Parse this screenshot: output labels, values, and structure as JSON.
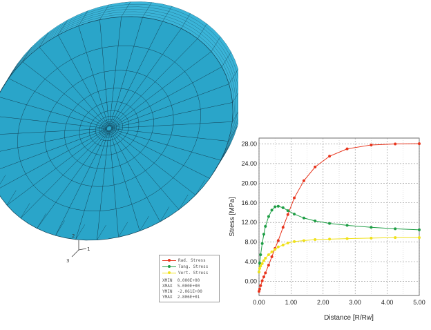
{
  "view": {
    "mesh_color": "#2aa5c9",
    "mesh_side_color": "#3ab4d8",
    "mesh_line_color": "#123e52",
    "triad_labels": [
      "2",
      "1",
      "3"
    ]
  },
  "legend": {
    "entries": [
      {
        "label": "Rad. Stress",
        "color": "#e8341c"
      },
      {
        "label": "Tang. Stress",
        "color": "#1e9e45"
      },
      {
        "label": "Vert. Stress",
        "color": "#f0e11a"
      }
    ],
    "stats": [
      {
        "key": "XMIN",
        "value": "0.000E+00"
      },
      {
        "key": "XMAX",
        "value": "5.000E+00"
      },
      {
        "key": "YMIN",
        "value": "-2.061E+00"
      },
      {
        "key": "YMAX",
        "value": "2.806E+01"
      }
    ]
  },
  "chart_data": {
    "type": "line",
    "xlabel": "Distance [R/Rw]",
    "ylabel": "Stress [MPa]",
    "xlim": [
      0,
      5
    ],
    "ylim": [
      -2.9,
      29.2
    ],
    "xticks": [
      "0.00",
      "1.00",
      "2.00",
      "3.00",
      "4.00",
      "5.00"
    ],
    "yticks": [
      "0.00",
      "4.00",
      "8.00",
      "12.00",
      "16.00",
      "20.00",
      "24.00",
      "28.00"
    ],
    "grid": true,
    "series": [
      {
        "name": "Rad. Stress",
        "color": "#e8341c",
        "x": [
          0,
          0.02,
          0.05,
          0.1,
          0.15,
          0.2,
          0.3,
          0.4,
          0.5,
          0.6,
          0.75,
          0.9,
          1.1,
          1.4,
          1.75,
          2.2,
          2.75,
          3.5,
          4.25,
          5.0
        ],
        "y": [
          -2.06,
          -1.6,
          -0.9,
          0.1,
          0.9,
          1.7,
          3.3,
          5.0,
          6.7,
          8.3,
          11.0,
          13.6,
          17.0,
          20.5,
          23.3,
          25.5,
          27.0,
          27.8,
          28.0,
          28.06
        ]
      },
      {
        "name": "Tang. Stress",
        "color": "#1e9e45",
        "x": [
          0,
          0.02,
          0.05,
          0.1,
          0.15,
          0.2,
          0.3,
          0.4,
          0.5,
          0.6,
          0.75,
          0.9,
          1.1,
          1.4,
          1.75,
          2.2,
          2.75,
          3.5,
          4.25,
          5.0
        ],
        "y": [
          1.9,
          3.7,
          5.4,
          7.7,
          9.6,
          11.2,
          13.2,
          14.5,
          15.2,
          15.3,
          15.0,
          14.4,
          13.7,
          12.9,
          12.3,
          11.8,
          11.4,
          11.0,
          10.7,
          10.5
        ]
      },
      {
        "name": "Vert. Stress",
        "color": "#f0e11a",
        "x": [
          0,
          0.02,
          0.05,
          0.1,
          0.15,
          0.2,
          0.3,
          0.4,
          0.5,
          0.6,
          0.75,
          0.9,
          1.1,
          1.4,
          1.75,
          2.2,
          2.75,
          3.5,
          4.25,
          5.0
        ],
        "y": [
          1.9,
          2.6,
          3.1,
          3.6,
          4.2,
          4.7,
          5.4,
          6.0,
          6.5,
          7.0,
          7.4,
          7.8,
          8.1,
          8.3,
          8.5,
          8.6,
          8.7,
          8.8,
          8.9,
          8.9
        ]
      }
    ]
  }
}
